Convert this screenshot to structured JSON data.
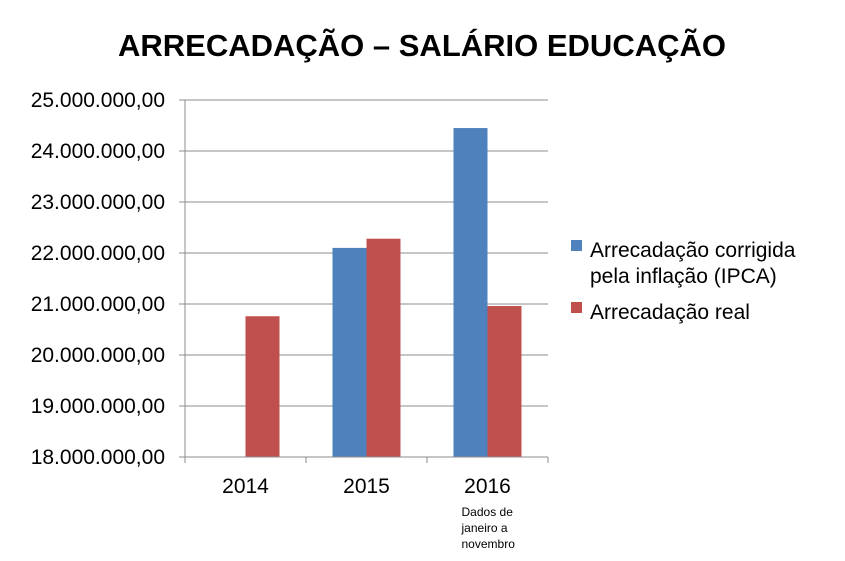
{
  "chart_data": {
    "type": "bar",
    "title": "ARRECADAÇÃO – SALÁRIO EDUCAÇÃO",
    "categories": [
      "2014",
      "2015",
      "2016"
    ],
    "category_notes": [
      "",
      "",
      "Dados de janeiro a novembro"
    ],
    "category_notes_lines": [
      [],
      [],
      [
        "Dados de",
        "janeiro a",
        "novembro"
      ]
    ],
    "series": [
      {
        "name": "Arrecadação corrigida pela inflação (IPCA)",
        "name_lines": [
          "Arrecadação corrigida",
          "pela inflação (IPCA)"
        ],
        "color": "#4f81bd",
        "values": [
          null,
          22100000,
          24450000
        ]
      },
      {
        "name": "Arrecadação real",
        "name_lines": [
          "Arrecadação real"
        ],
        "color": "#c0504d",
        "values": [
          20760000,
          22280000,
          20960000
        ]
      }
    ],
    "ylim": [
      18000000,
      25000000
    ],
    "yticks": [
      18000000,
      19000000,
      20000000,
      21000000,
      22000000,
      23000000,
      24000000,
      25000000
    ],
    "ytick_labels": [
      "18.000.000,00",
      "19.000.000,00",
      "20.000.000,00",
      "21.000.000,00",
      "22.000.000,00",
      "23.000.000,00",
      "24.000.000,00",
      "25.000.000,00"
    ],
    "xlabel": "",
    "ylabel": "",
    "grid": true,
    "legend_position": "right"
  }
}
